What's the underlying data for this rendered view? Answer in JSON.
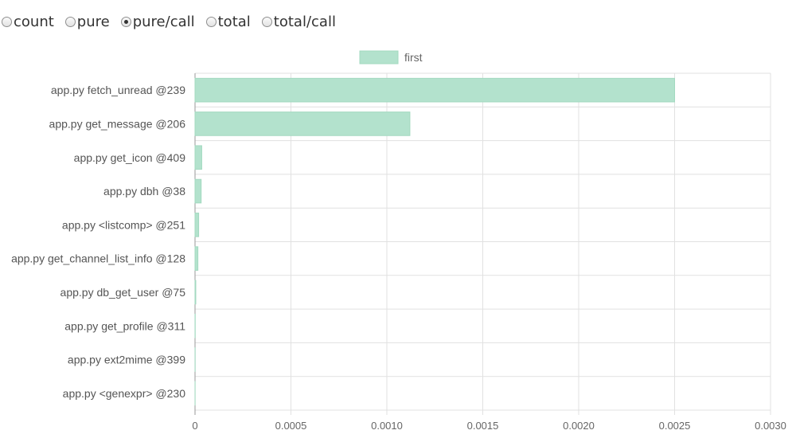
{
  "mode_options": [
    {
      "label": "count",
      "checked": false
    },
    {
      "label": "pure",
      "checked": false
    },
    {
      "label": "pure/call",
      "checked": true
    },
    {
      "label": "total",
      "checked": false
    },
    {
      "label": "total/call",
      "checked": false
    }
  ],
  "chart_data": {
    "type": "bar",
    "orientation": "horizontal",
    "categories": [
      "app.py fetch_unread @239",
      "app.py get_message @206",
      "app.py get_icon @409",
      "app.py dbh @38",
      "app.py <listcomp> @251",
      "app.py get_channel_list_info @128",
      "app.py db_get_user @75",
      "app.py get_profile @311",
      "app.py ext2mime @399",
      "app.py <genexpr> @230"
    ],
    "series": [
      {
        "name": "first",
        "values": [
          0.0025,
          0.00112,
          3.5e-05,
          3.2e-05,
          1.9e-05,
          1.5e-05,
          4e-06,
          1e-06,
          8e-07,
          5e-07
        ]
      }
    ],
    "xlim": [
      0,
      0.003
    ],
    "xticks": [
      "0",
      "0.0005",
      "0.0010",
      "0.0015",
      "0.0020",
      "0.0025",
      "0.0030"
    ],
    "xtick_values": [
      0,
      0.0005,
      0.001,
      0.0015,
      0.002,
      0.0025,
      0.003
    ],
    "grid": true,
    "legend_position": "top-center",
    "colors": {
      "bar_fill": "#b3e2cd",
      "bar_stroke": "#a3d9c0",
      "grid": "#e1e1e1",
      "axis": "#999999"
    }
  }
}
